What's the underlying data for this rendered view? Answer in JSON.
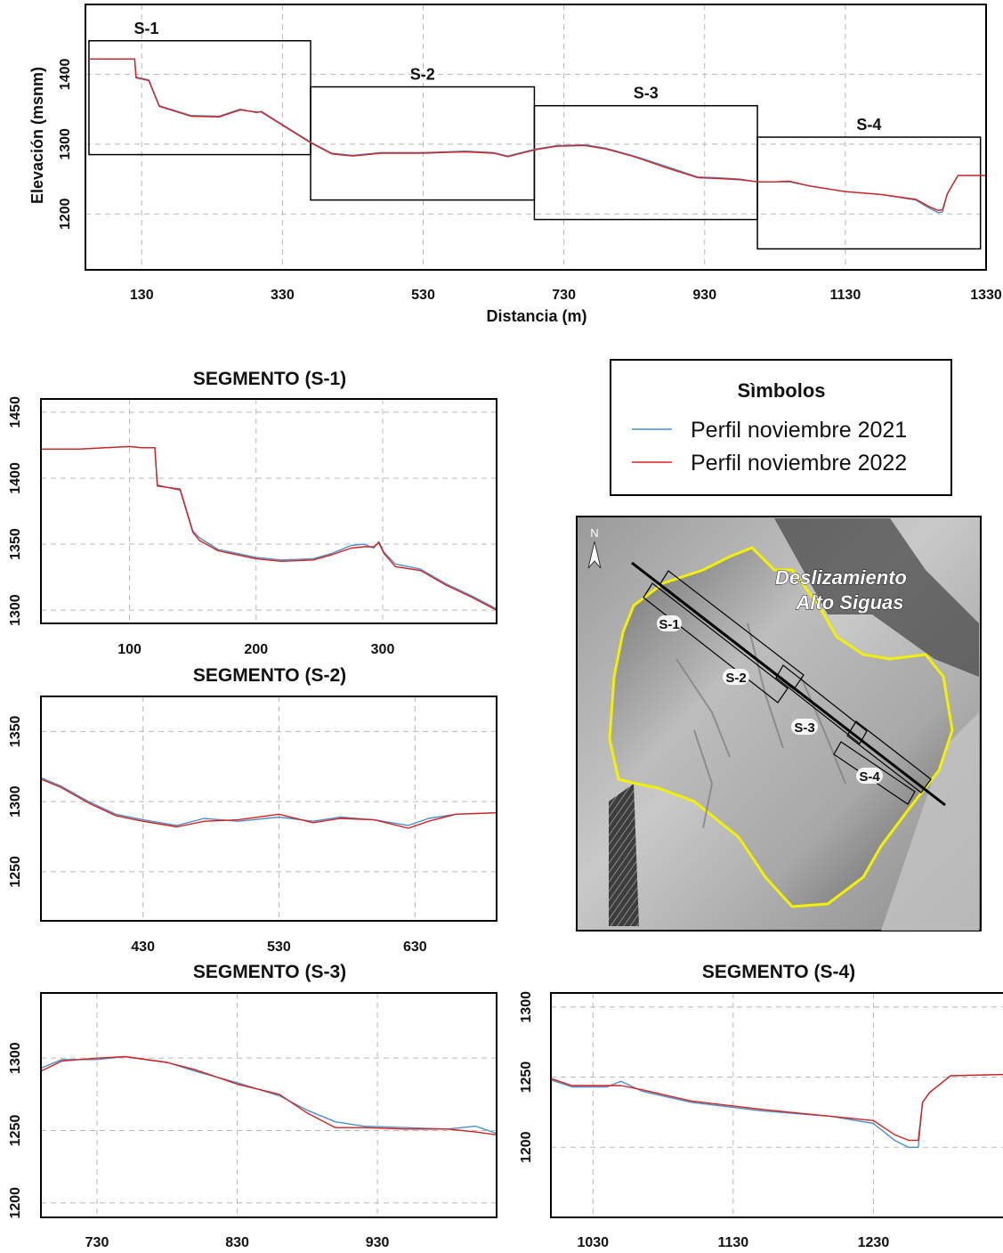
{
  "colors": {
    "series_2021": "#4a90c8",
    "series_2022": "#d62020",
    "frame": "#000000",
    "grid": "#b8b8b8",
    "outline": "#e6e62a"
  },
  "legend": {
    "title": "Sìmbolos",
    "items": [
      {
        "label": "Perfil noviembre 2021",
        "color": "#4a90c8"
      },
      {
        "label": "Perfil noviembre 2022",
        "color": "#d62020"
      }
    ]
  },
  "map": {
    "north": "N",
    "title_line1": "Deslizamiento",
    "title_line2": "Alto Siguas",
    "labels": [
      "S-1",
      "S-2",
      "S-3",
      "S-4"
    ]
  },
  "chart_data": [
    {
      "type": "line",
      "title": "",
      "xlabel": "Distancia (m)",
      "ylabel": "Elevación (msnm)",
      "xlim": [
        50,
        1330
      ],
      "ylim": [
        1120,
        1500
      ],
      "xticks": [
        130,
        330,
        530,
        730,
        930,
        1130,
        1330
      ],
      "yticks": [
        1200,
        1300,
        1400
      ],
      "segments": [
        {
          "label": "S-1",
          "x": [
            55,
            370
          ],
          "y": [
            1285,
            1448
          ]
        },
        {
          "label": "S-2",
          "x": [
            370,
            688
          ],
          "y": [
            1220,
            1382
          ]
        },
        {
          "label": "S-3",
          "x": [
            688,
            1005
          ],
          "y": [
            1192,
            1355
          ]
        },
        {
          "label": "S-4",
          "x": [
            1005,
            1322
          ],
          "y": [
            1150,
            1310
          ]
        }
      ],
      "series": [
        {
          "name": "Perfil noviembre 2021",
          "x": [
            55,
            120,
            122,
            140,
            155,
            200,
            240,
            270,
            293,
            300,
            330,
            370,
            400,
            430,
            470,
            530,
            590,
            630,
            650,
            690,
            720,
            760,
            790,
            830,
            870,
            920,
            945,
            980,
            1005,
            1030,
            1050,
            1080,
            1130,
            1180,
            1230,
            1250,
            1262,
            1268,
            1275,
            1290,
            1330
          ],
          "y": [
            1422,
            1422,
            1396,
            1392,
            1355,
            1341,
            1340,
            1350,
            1345,
            1347,
            1328,
            1303,
            1287,
            1284,
            1288,
            1288,
            1290,
            1288,
            1283,
            1293,
            1298,
            1299,
            1294,
            1283,
            1270,
            1253,
            1252,
            1250,
            1246,
            1246,
            1246,
            1240,
            1232,
            1228,
            1220,
            1208,
            1202,
            1203,
            1229,
            1255,
            1255
          ]
        },
        {
          "name": "Perfil noviembre 2022",
          "x": [
            55,
            120,
            122,
            140,
            155,
            200,
            240,
            270,
            293,
            300,
            330,
            370,
            400,
            430,
            470,
            530,
            590,
            630,
            650,
            690,
            720,
            760,
            790,
            830,
            870,
            920,
            945,
            980,
            1005,
            1030,
            1050,
            1080,
            1130,
            1180,
            1230,
            1250,
            1262,
            1268,
            1275,
            1290,
            1330
          ],
          "y": [
            1422,
            1422,
            1395,
            1391,
            1354,
            1340,
            1339,
            1349,
            1346,
            1346,
            1327,
            1302,
            1286,
            1283,
            1287,
            1287,
            1289,
            1287,
            1282,
            1292,
            1297,
            1298,
            1293,
            1282,
            1268,
            1252,
            1251,
            1249,
            1246,
            1246,
            1247,
            1240,
            1232,
            1228,
            1221,
            1210,
            1205,
            1206,
            1229,
            1255,
            1255
          ]
        }
      ]
    },
    {
      "type": "line",
      "title": "SEGMENTO (S-1)",
      "xlim": [
        30,
        390
      ],
      "ylim": [
        1290,
        1460
      ],
      "xticks": [
        100,
        200,
        300
      ],
      "yticks": [
        1300,
        1350,
        1400,
        1450
      ],
      "series": [
        {
          "name": "Perfil noviembre 2021",
          "x": [
            30,
            60,
            80,
            100,
            110,
            120,
            122,
            130,
            140,
            150,
            155,
            170,
            200,
            220,
            245,
            260,
            275,
            285,
            293,
            297,
            301,
            310,
            330,
            350,
            370,
            390
          ],
          "y": [
            1422,
            1422,
            1423,
            1424,
            1423,
            1423,
            1395,
            1393,
            1392,
            1360,
            1355,
            1346,
            1340,
            1338,
            1339,
            1343,
            1349,
            1350,
            1347,
            1352,
            1344,
            1335,
            1331,
            1320,
            1311,
            1301
          ]
        },
        {
          "name": "Perfil noviembre 2022",
          "x": [
            30,
            60,
            80,
            100,
            110,
            120,
            122,
            130,
            140,
            150,
            155,
            170,
            200,
            220,
            245,
            260,
            275,
            285,
            293,
            297,
            301,
            310,
            330,
            350,
            370,
            390
          ],
          "y": [
            1422,
            1422,
            1423,
            1424,
            1423,
            1423,
            1394,
            1393,
            1391,
            1359,
            1353,
            1345,
            1339,
            1337,
            1338,
            1342,
            1347,
            1348,
            1348,
            1351,
            1343,
            1333,
            1330,
            1319,
            1310,
            1300
          ]
        }
      ]
    },
    {
      "type": "line",
      "title": "SEGMENTO (S-2)",
      "xlim": [
        355,
        690
      ],
      "ylim": [
        1215,
        1375
      ],
      "xticks": [
        430,
        530,
        630
      ],
      "yticks": [
        1250,
        1300,
        1350
      ],
      "series": [
        {
          "name": "Perfil noviembre 2021",
          "x": [
            355,
            370,
            390,
            410,
            430,
            455,
            475,
            500,
            530,
            555,
            575,
            600,
            625,
            640,
            660,
            690
          ],
          "y": [
            1317,
            1311,
            1300,
            1291,
            1287,
            1283,
            1288,
            1286,
            1289,
            1286,
            1289,
            1287,
            1283,
            1288,
            1291,
            1292
          ]
        },
        {
          "name": "Perfil noviembre 2022",
          "x": [
            355,
            370,
            390,
            410,
            430,
            455,
            475,
            500,
            530,
            555,
            575,
            600,
            625,
            640,
            660,
            690
          ],
          "y": [
            1316,
            1310,
            1299,
            1290,
            1286,
            1282,
            1286,
            1287,
            1291,
            1285,
            1288,
            1287,
            1281,
            1286,
            1291,
            1292
          ]
        }
      ]
    },
    {
      "type": "line",
      "title": "SEGMENTO (S-3)",
      "xlim": [
        690,
        1015
      ],
      "ylim": [
        1190,
        1345
      ],
      "xticks": [
        730,
        830,
        930
      ],
      "yticks": [
        1200,
        1250,
        1300
      ],
      "series": [
        {
          "name": "Perfil noviembre 2021",
          "x": [
            690,
            705,
            730,
            750,
            780,
            800,
            830,
            860,
            880,
            900,
            920,
            950,
            980,
            1000,
            1015
          ],
          "y": [
            1293,
            1299,
            1299,
            1301,
            1297,
            1291,
            1283,
            1274,
            1264,
            1256,
            1253,
            1252,
            1251,
            1253,
            1248
          ]
        },
        {
          "name": "Perfil noviembre 2022",
          "x": [
            690,
            705,
            730,
            750,
            780,
            800,
            830,
            860,
            880,
            900,
            920,
            950,
            980,
            1000,
            1015
          ],
          "y": [
            1291,
            1298,
            1300,
            1301,
            1297,
            1292,
            1282,
            1275,
            1262,
            1252,
            1252,
            1251,
            1251,
            1249,
            1247
          ]
        }
      ]
    },
    {
      "type": "line",
      "title": "SEGMENTO (S-4)",
      "xlim": [
        1000,
        1330
      ],
      "ylim": [
        1150,
        1310
      ],
      "xticks": [
        1030,
        1130,
        1230
      ],
      "yticks": [
        1200,
        1250,
        1300
      ],
      "series": [
        {
          "name": "Perfil noviembre 2021",
          "x": [
            1000,
            1015,
            1040,
            1050,
            1065,
            1100,
            1150,
            1200,
            1230,
            1245,
            1255,
            1262,
            1265,
            1270,
            1285,
            1330
          ],
          "y": [
            1248,
            1243,
            1243,
            1247,
            1240,
            1232,
            1226,
            1222,
            1217,
            1205,
            1200,
            1200,
            1232,
            1239,
            1251,
            1252
          ]
        },
        {
          "name": "Perfil noviembre 2022",
          "x": [
            1000,
            1015,
            1040,
            1050,
            1065,
            1100,
            1150,
            1200,
            1230,
            1245,
            1255,
            1262,
            1265,
            1270,
            1285,
            1330
          ],
          "y": [
            1249,
            1244,
            1244,
            1244,
            1241,
            1233,
            1227,
            1222,
            1219,
            1209,
            1205,
            1205,
            1232,
            1239,
            1251,
            1252
          ]
        }
      ]
    }
  ]
}
